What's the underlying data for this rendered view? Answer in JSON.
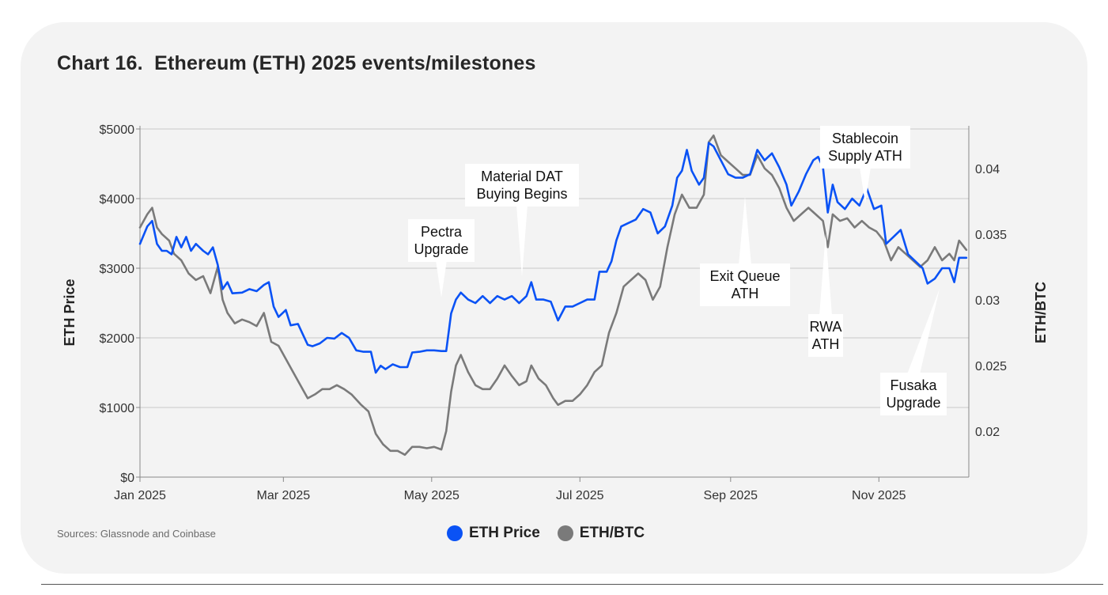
{
  "title": "Chart 16.  Ethereum (ETH) 2025 events/milestones",
  "source": "Sources: Glassnode and Coinbase",
  "legend": [
    {
      "label": "ETH Price",
      "color": "#0a52f5"
    },
    {
      "label": "ETH/BTC",
      "color": "#7a7a7a"
    }
  ],
  "chart_data": {
    "type": "line",
    "title": "Chart 16.  Ethereum (ETH) 2025 events/milestones",
    "ylabel_left": "ETH Price",
    "ylabel_right": "ETH/BTC",
    "x_tick_labels": [
      "Jan 2025",
      "Mar 2025",
      "May 2025",
      "Jul 2025",
      "Sep 2025",
      "Nov 2025"
    ],
    "x_ticks": [
      "2025-01-01",
      "2025-03-01",
      "2025-05-01",
      "2025-07-01",
      "2025-09-01",
      "2025-11-01"
    ],
    "xlim": [
      "2025-01-01",
      "2025-12-08"
    ],
    "ylim_left": [
      0,
      5000
    ],
    "left_tick_values": [
      0,
      1000,
      2000,
      3000,
      4000,
      5000
    ],
    "left_tick_labels": [
      "$0",
      "$1000",
      "$2000",
      "$3000",
      "$4000",
      "$5000"
    ],
    "ylim_right": [
      0.0165,
      0.043
    ],
    "right_tick_values": [
      0.02,
      0.025,
      0.03,
      0.035,
      0.04
    ],
    "right_tick_labels": [
      "0.02",
      "0.025",
      "0.03",
      "0.035",
      "0.04"
    ],
    "grid": true,
    "series": [
      {
        "name": "ETH Price",
        "axis": "left",
        "color": "#0a52f5",
        "points": [
          [
            "2025-01-01",
            3350
          ],
          [
            "2025-01-04",
            3600
          ],
          [
            "2025-01-06",
            3680
          ],
          [
            "2025-01-08",
            3350
          ],
          [
            "2025-01-10",
            3250
          ],
          [
            "2025-01-12",
            3250
          ],
          [
            "2025-01-14",
            3200
          ],
          [
            "2025-01-16",
            3450
          ],
          [
            "2025-01-18",
            3300
          ],
          [
            "2025-01-20",
            3450
          ],
          [
            "2025-01-22",
            3250
          ],
          [
            "2025-01-24",
            3350
          ],
          [
            "2025-01-27",
            3250
          ],
          [
            "2025-01-29",
            3200
          ],
          [
            "2025-01-31",
            3300
          ],
          [
            "2025-02-02",
            3050
          ],
          [
            "2025-02-04",
            2700
          ],
          [
            "2025-02-06",
            2800
          ],
          [
            "2025-02-08",
            2640
          ],
          [
            "2025-02-12",
            2650
          ],
          [
            "2025-02-15",
            2700
          ],
          [
            "2025-02-18",
            2670
          ],
          [
            "2025-02-21",
            2760
          ],
          [
            "2025-02-23",
            2800
          ],
          [
            "2025-02-25",
            2450
          ],
          [
            "2025-02-27",
            2300
          ],
          [
            "2025-03-02",
            2400
          ],
          [
            "2025-03-04",
            2180
          ],
          [
            "2025-03-07",
            2200
          ],
          [
            "2025-03-09",
            2050
          ],
          [
            "2025-03-11",
            1900
          ],
          [
            "2025-03-13",
            1880
          ],
          [
            "2025-03-16",
            1920
          ],
          [
            "2025-03-19",
            2000
          ],
          [
            "2025-03-22",
            1990
          ],
          [
            "2025-03-25",
            2070
          ],
          [
            "2025-03-28",
            2000
          ],
          [
            "2025-03-31",
            1820
          ],
          [
            "2025-04-03",
            1800
          ],
          [
            "2025-04-06",
            1800
          ],
          [
            "2025-04-08",
            1500
          ],
          [
            "2025-04-10",
            1600
          ],
          [
            "2025-04-12",
            1550
          ],
          [
            "2025-04-15",
            1620
          ],
          [
            "2025-04-18",
            1580
          ],
          [
            "2025-04-21",
            1580
          ],
          [
            "2025-04-23",
            1790
          ],
          [
            "2025-04-26",
            1800
          ],
          [
            "2025-04-29",
            1820
          ],
          [
            "2025-05-02",
            1820
          ],
          [
            "2025-05-05",
            1810
          ],
          [
            "2025-05-07",
            1810
          ],
          [
            "2025-05-09",
            2350
          ],
          [
            "2025-05-11",
            2550
          ],
          [
            "2025-05-13",
            2650
          ],
          [
            "2025-05-16",
            2550
          ],
          [
            "2025-05-19",
            2500
          ],
          [
            "2025-05-22",
            2600
          ],
          [
            "2025-05-25",
            2500
          ],
          [
            "2025-05-28",
            2600
          ],
          [
            "2025-05-31",
            2550
          ],
          [
            "2025-06-03",
            2600
          ],
          [
            "2025-06-06",
            2500
          ],
          [
            "2025-06-09",
            2600
          ],
          [
            "2025-06-11",
            2800
          ],
          [
            "2025-06-13",
            2550
          ],
          [
            "2025-06-16",
            2550
          ],
          [
            "2025-06-19",
            2520
          ],
          [
            "2025-06-22",
            2250
          ],
          [
            "2025-06-25",
            2450
          ],
          [
            "2025-06-28",
            2450
          ],
          [
            "2025-07-01",
            2500
          ],
          [
            "2025-07-04",
            2550
          ],
          [
            "2025-07-07",
            2550
          ],
          [
            "2025-07-09",
            2950
          ],
          [
            "2025-07-12",
            2950
          ],
          [
            "2025-07-14",
            3100
          ],
          [
            "2025-07-16",
            3400
          ],
          [
            "2025-07-18",
            3600
          ],
          [
            "2025-07-21",
            3650
          ],
          [
            "2025-07-24",
            3700
          ],
          [
            "2025-07-27",
            3850
          ],
          [
            "2025-07-30",
            3800
          ],
          [
            "2025-08-02",
            3500
          ],
          [
            "2025-08-05",
            3600
          ],
          [
            "2025-08-08",
            3900
          ],
          [
            "2025-08-10",
            4300
          ],
          [
            "2025-08-12",
            4400
          ],
          [
            "2025-08-14",
            4700
          ],
          [
            "2025-08-16",
            4400
          ],
          [
            "2025-08-19",
            4200
          ],
          [
            "2025-08-21",
            4300
          ],
          [
            "2025-08-23",
            4800
          ],
          [
            "2025-08-25",
            4750
          ],
          [
            "2025-08-28",
            4550
          ],
          [
            "2025-08-31",
            4350
          ],
          [
            "2025-09-03",
            4300
          ],
          [
            "2025-09-06",
            4300
          ],
          [
            "2025-09-09",
            4350
          ],
          [
            "2025-09-12",
            4700
          ],
          [
            "2025-09-15",
            4550
          ],
          [
            "2025-09-18",
            4650
          ],
          [
            "2025-09-21",
            4450
          ],
          [
            "2025-09-24",
            4200
          ],
          [
            "2025-09-26",
            3900
          ],
          [
            "2025-09-29",
            4100
          ],
          [
            "2025-10-02",
            4350
          ],
          [
            "2025-10-05",
            4550
          ],
          [
            "2025-10-07",
            4600
          ],
          [
            "2025-10-09",
            4450
          ],
          [
            "2025-10-11",
            3800
          ],
          [
            "2025-10-13",
            4200
          ],
          [
            "2025-10-15",
            3950
          ],
          [
            "2025-10-18",
            3850
          ],
          [
            "2025-10-21",
            4000
          ],
          [
            "2025-10-24",
            3900
          ],
          [
            "2025-10-27",
            4150
          ],
          [
            "2025-10-30",
            3850
          ],
          [
            "2025-11-02",
            3900
          ],
          [
            "2025-11-04",
            3350
          ],
          [
            "2025-11-07",
            3450
          ],
          [
            "2025-11-10",
            3550
          ],
          [
            "2025-11-13",
            3200
          ],
          [
            "2025-11-16",
            3100
          ],
          [
            "2025-11-19",
            3000
          ],
          [
            "2025-11-21",
            2780
          ],
          [
            "2025-11-24",
            2850
          ],
          [
            "2025-11-27",
            3000
          ],
          [
            "2025-11-30",
            3000
          ],
          [
            "2025-12-02",
            2800
          ],
          [
            "2025-12-04",
            3150
          ],
          [
            "2025-12-07",
            3150
          ]
        ]
      },
      {
        "name": "ETH/BTC",
        "axis": "right",
        "color": "#7a7a7a",
        "points": [
          [
            "2025-01-01",
            0.0355
          ],
          [
            "2025-01-04",
            0.0365
          ],
          [
            "2025-01-06",
            0.037
          ],
          [
            "2025-01-08",
            0.0355
          ],
          [
            "2025-01-10",
            0.035
          ],
          [
            "2025-01-13",
            0.0345
          ],
          [
            "2025-01-15",
            0.0335
          ],
          [
            "2025-01-18",
            0.033
          ],
          [
            "2025-01-21",
            0.032
          ],
          [
            "2025-01-24",
            0.0315
          ],
          [
            "2025-01-27",
            0.0318
          ],
          [
            "2025-01-30",
            0.0305
          ],
          [
            "2025-02-02",
            0.0325
          ],
          [
            "2025-02-04",
            0.03
          ],
          [
            "2025-02-06",
            0.029
          ],
          [
            "2025-02-09",
            0.0282
          ],
          [
            "2025-02-12",
            0.0285
          ],
          [
            "2025-02-15",
            0.0283
          ],
          [
            "2025-02-18",
            0.028
          ],
          [
            "2025-02-21",
            0.029
          ],
          [
            "2025-02-24",
            0.0268
          ],
          [
            "2025-02-27",
            0.0265
          ],
          [
            "2025-03-02",
            0.0255
          ],
          [
            "2025-03-05",
            0.0245
          ],
          [
            "2025-03-08",
            0.0235
          ],
          [
            "2025-03-11",
            0.0225
          ],
          [
            "2025-03-14",
            0.0228
          ],
          [
            "2025-03-17",
            0.0232
          ],
          [
            "2025-03-20",
            0.0232
          ],
          [
            "2025-03-23",
            0.0235
          ],
          [
            "2025-03-26",
            0.0232
          ],
          [
            "2025-03-29",
            0.0228
          ],
          [
            "2025-04-02",
            0.022
          ],
          [
            "2025-04-05",
            0.0215
          ],
          [
            "2025-04-08",
            0.0198
          ],
          [
            "2025-04-11",
            0.019
          ],
          [
            "2025-04-14",
            0.0185
          ],
          [
            "2025-04-17",
            0.0185
          ],
          [
            "2025-04-20",
            0.0182
          ],
          [
            "2025-04-23",
            0.0188
          ],
          [
            "2025-04-26",
            0.0188
          ],
          [
            "2025-04-29",
            0.0187
          ],
          [
            "2025-05-02",
            0.0188
          ],
          [
            "2025-05-05",
            0.0186
          ],
          [
            "2025-05-07",
            0.02
          ],
          [
            "2025-05-09",
            0.023
          ],
          [
            "2025-05-11",
            0.025
          ],
          [
            "2025-05-13",
            0.0258
          ],
          [
            "2025-05-16",
            0.0245
          ],
          [
            "2025-05-19",
            0.0235
          ],
          [
            "2025-05-22",
            0.0232
          ],
          [
            "2025-05-25",
            0.0232
          ],
          [
            "2025-05-28",
            0.024
          ],
          [
            "2025-05-31",
            0.025
          ],
          [
            "2025-06-03",
            0.0242
          ],
          [
            "2025-06-06",
            0.0235
          ],
          [
            "2025-06-09",
            0.0238
          ],
          [
            "2025-06-11",
            0.025
          ],
          [
            "2025-06-14",
            0.024
          ],
          [
            "2025-06-17",
            0.0235
          ],
          [
            "2025-06-20",
            0.0225
          ],
          [
            "2025-06-22",
            0.022
          ],
          [
            "2025-06-25",
            0.0223
          ],
          [
            "2025-06-28",
            0.0223
          ],
          [
            "2025-07-01",
            0.0228
          ],
          [
            "2025-07-04",
            0.0235
          ],
          [
            "2025-07-07",
            0.0245
          ],
          [
            "2025-07-10",
            0.025
          ],
          [
            "2025-07-13",
            0.0275
          ],
          [
            "2025-07-16",
            0.029
          ],
          [
            "2025-07-19",
            0.031
          ],
          [
            "2025-07-22",
            0.0315
          ],
          [
            "2025-07-25",
            0.032
          ],
          [
            "2025-07-28",
            0.0315
          ],
          [
            "2025-07-31",
            0.03
          ],
          [
            "2025-08-03",
            0.031
          ],
          [
            "2025-08-06",
            0.034
          ],
          [
            "2025-08-09",
            0.0365
          ],
          [
            "2025-08-12",
            0.038
          ],
          [
            "2025-08-15",
            0.037
          ],
          [
            "2025-08-18",
            0.037
          ],
          [
            "2025-08-21",
            0.038
          ],
          [
            "2025-08-23",
            0.042
          ],
          [
            "2025-08-25",
            0.0425
          ],
          [
            "2025-08-28",
            0.041
          ],
          [
            "2025-08-31",
            0.0405
          ],
          [
            "2025-09-03",
            0.04
          ],
          [
            "2025-09-06",
            0.0395
          ],
          [
            "2025-09-09",
            0.0395
          ],
          [
            "2025-09-12",
            0.041
          ],
          [
            "2025-09-15",
            0.04
          ],
          [
            "2025-09-18",
            0.0395
          ],
          [
            "2025-09-21",
            0.0385
          ],
          [
            "2025-09-24",
            0.037
          ],
          [
            "2025-09-27",
            0.036
          ],
          [
            "2025-09-30",
            0.0365
          ],
          [
            "2025-10-03",
            0.037
          ],
          [
            "2025-10-06",
            0.0365
          ],
          [
            "2025-10-09",
            0.036
          ],
          [
            "2025-10-11",
            0.034
          ],
          [
            "2025-10-13",
            0.0365
          ],
          [
            "2025-10-16",
            0.036
          ],
          [
            "2025-10-19",
            0.0362
          ],
          [
            "2025-10-22",
            0.0355
          ],
          [
            "2025-10-25",
            0.036
          ],
          [
            "2025-10-28",
            0.0355
          ],
          [
            "2025-10-31",
            0.0352
          ],
          [
            "2025-11-03",
            0.0345
          ],
          [
            "2025-11-06",
            0.033
          ],
          [
            "2025-11-09",
            0.034
          ],
          [
            "2025-11-12",
            0.0335
          ],
          [
            "2025-11-15",
            0.033
          ],
          [
            "2025-11-18",
            0.0325
          ],
          [
            "2025-11-21",
            0.033
          ],
          [
            "2025-11-24",
            0.034
          ],
          [
            "2025-11-27",
            0.033
          ],
          [
            "2025-11-30",
            0.0335
          ],
          [
            "2025-12-02",
            0.033
          ],
          [
            "2025-12-04",
            0.0345
          ],
          [
            "2025-12-07",
            0.0338
          ]
        ]
      }
    ],
    "annotations": [
      {
        "lines": [
          "Pectra",
          "Upgrade"
        ],
        "date": "2025-05-07"
      },
      {
        "lines": [
          "Material DAT",
          "Buying Begins"
        ],
        "date": "2025-06-11"
      },
      {
        "lines": [
          "Exit Queue",
          "ATH"
        ],
        "date": "2025-09-12"
      },
      {
        "lines": [
          "Stablecoin",
          "Supply ATH"
        ],
        "date": "2025-11-02"
      },
      {
        "lines": [
          "RWA",
          "ATH"
        ],
        "date": "2025-10-16"
      },
      {
        "lines": [
          "Fusaka",
          "Upgrade"
        ],
        "date": "2025-12-03"
      }
    ]
  }
}
